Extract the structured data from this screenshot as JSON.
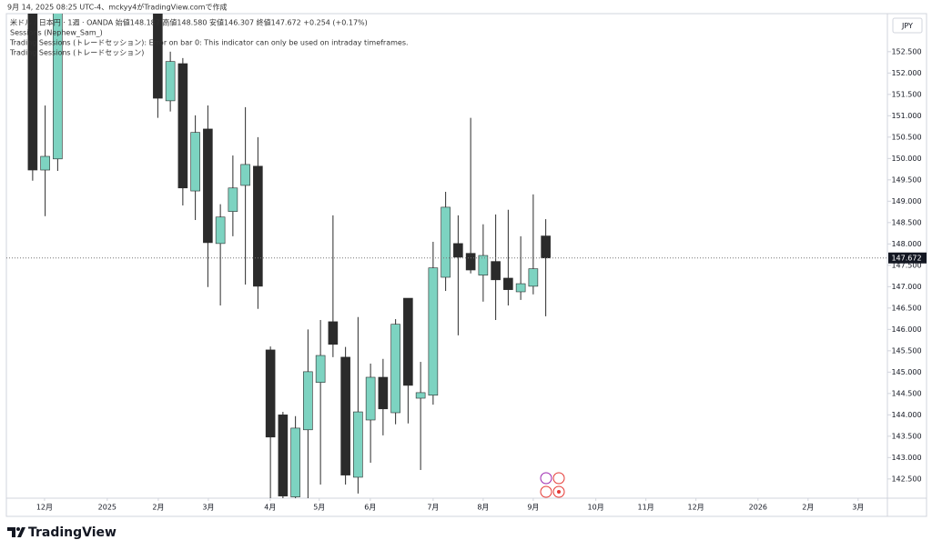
{
  "chart_data": {
    "type": "candlestick",
    "header": {
      "created": "9月 14, 2025 08:25 UTC-4、mckyy4がTradingView.comで作成",
      "symbol": "米ドル / 日本円 · 1週 · OANDA  始値148.187  高値148.580  安値146.307  終値147.672  +0.254 (+0.17%)",
      "indicators": [
        "Sessions (Nephew_Sam_)",
        "Trading Sessions (トレードセッション): Error on bar 0: This indicator can only be used on intraday timeframes.",
        "Trading Sessions (トレードセッション)"
      ]
    },
    "currency": "JPY",
    "brand": "TradingView",
    "up_color": "#7dd3c1",
    "down_color": "#2b2b2b",
    "x": [
      0,
      1,
      2,
      10,
      11,
      12,
      13,
      14,
      15,
      16,
      17,
      18,
      19,
      20,
      21,
      22,
      23,
      24,
      25,
      26,
      27,
      28,
      29,
      30,
      31,
      32,
      33,
      34,
      35,
      36,
      37,
      38,
      39,
      40,
      41
    ],
    "open": [
      154.0,
      149.73,
      149.99,
      154.0,
      151.35,
      152.22,
      149.24,
      150.69,
      148.01,
      148.76,
      149.37,
      149.82,
      145.52,
      144.0,
      142.08,
      143.65,
      144.76,
      146.18,
      145.35,
      142.54,
      143.88,
      144.88,
      144.05,
      146.73,
      144.39,
      144.46,
      147.22,
      148.01,
      147.78,
      147.27,
      147.59,
      147.2,
      146.88,
      147.01,
      148.187
    ],
    "high": [
      154.5,
      151.24,
      155.0,
      155.0,
      152.5,
      152.35,
      151.01,
      151.24,
      148.93,
      150.07,
      151.2,
      150.5,
      145.6,
      144.07,
      143.97,
      146.0,
      146.22,
      148.67,
      145.59,
      146.29,
      145.2,
      145.31,
      146.24,
      146.73,
      145.24,
      148.05,
      149.22,
      148.67,
      150.95,
      148.46,
      148.69,
      148.8,
      148.18,
      149.16,
      148.58
    ],
    "low": [
      149.48,
      148.65,
      149.71,
      150.95,
      151.1,
      148.9,
      148.56,
      146.99,
      146.56,
      148.18,
      147.05,
      146.48,
      141.9,
      141.95,
      141.9,
      142.0,
      142.37,
      145.35,
      142.37,
      142.16,
      142.88,
      143.52,
      143.78,
      143.8,
      142.71,
      144.24,
      146.9,
      145.86,
      147.31,
      146.65,
      146.22,
      146.56,
      146.69,
      146.82,
      146.307
    ],
    "close": [
      149.73,
      150.05,
      154.5,
      151.41,
      152.27,
      149.31,
      150.61,
      148.03,
      148.63,
      149.31,
      149.86,
      147.01,
      143.48,
      142.1,
      143.69,
      145.01,
      145.39,
      145.65,
      142.59,
      144.07,
      144.88,
      144.14,
      146.12,
      144.69,
      144.52,
      147.44,
      148.86,
      147.69,
      147.39,
      147.73,
      147.16,
      146.93,
      147.07,
      147.42,
      147.672
    ],
    "last_price": 147.672,
    "xlim": [
      -2.1,
      68.3
    ],
    "xticks": [
      {
        "value": 0.95,
        "label": "12月"
      },
      {
        "value": 5.96,
        "label": "2025"
      },
      {
        "value": 10.04,
        "label": "2月"
      },
      {
        "value": 14.04,
        "label": "3月"
      },
      {
        "value": 18.98,
        "label": "4月"
      },
      {
        "value": 22.9,
        "label": "5月"
      },
      {
        "value": 26.98,
        "label": "6月"
      },
      {
        "value": 32.0,
        "label": "7月"
      },
      {
        "value": 36.0,
        "label": "8月"
      },
      {
        "value": 40.0,
        "label": "9月"
      },
      {
        "value": 45.0,
        "label": "10月"
      },
      {
        "value": 49.0,
        "label": "11月"
      },
      {
        "value": 53.0,
        "label": "12月"
      },
      {
        "value": 57.96,
        "label": "2026"
      },
      {
        "value": 61.96,
        "label": "2月"
      },
      {
        "value": 65.96,
        "label": "3月"
      }
    ],
    "ylim": [
      142.05,
      153.39
    ],
    "yticks": [
      {
        "value": 142.5,
        "label": "142.500"
      },
      {
        "value": 143,
        "label": "143.000"
      },
      {
        "value": 143.5,
        "label": "143.500"
      },
      {
        "value": 144,
        "label": "144.000"
      },
      {
        "value": 144.5,
        "label": "144.500"
      },
      {
        "value": 145,
        "label": "145.000"
      },
      {
        "value": 145.5,
        "label": "145.500"
      },
      {
        "value": 146,
        "label": "146.000"
      },
      {
        "value": 146.5,
        "label": "146.500"
      },
      {
        "value": 147,
        "label": "147.000"
      },
      {
        "value": 147.5,
        "label": "147.500"
      },
      {
        "value": 148,
        "label": "148.000"
      },
      {
        "value": 148.5,
        "label": "148.500"
      },
      {
        "value": 149,
        "label": "149.000"
      },
      {
        "value": 149.5,
        "label": "149.500"
      },
      {
        "value": 150,
        "label": "150.000"
      },
      {
        "value": 150.5,
        "label": "150.500"
      },
      {
        "value": 151,
        "label": "151.000"
      },
      {
        "value": 151.5,
        "label": "151.500"
      },
      {
        "value": 152,
        "label": "152.000"
      },
      {
        "value": 152.5,
        "label": "152.500"
      }
    ]
  }
}
